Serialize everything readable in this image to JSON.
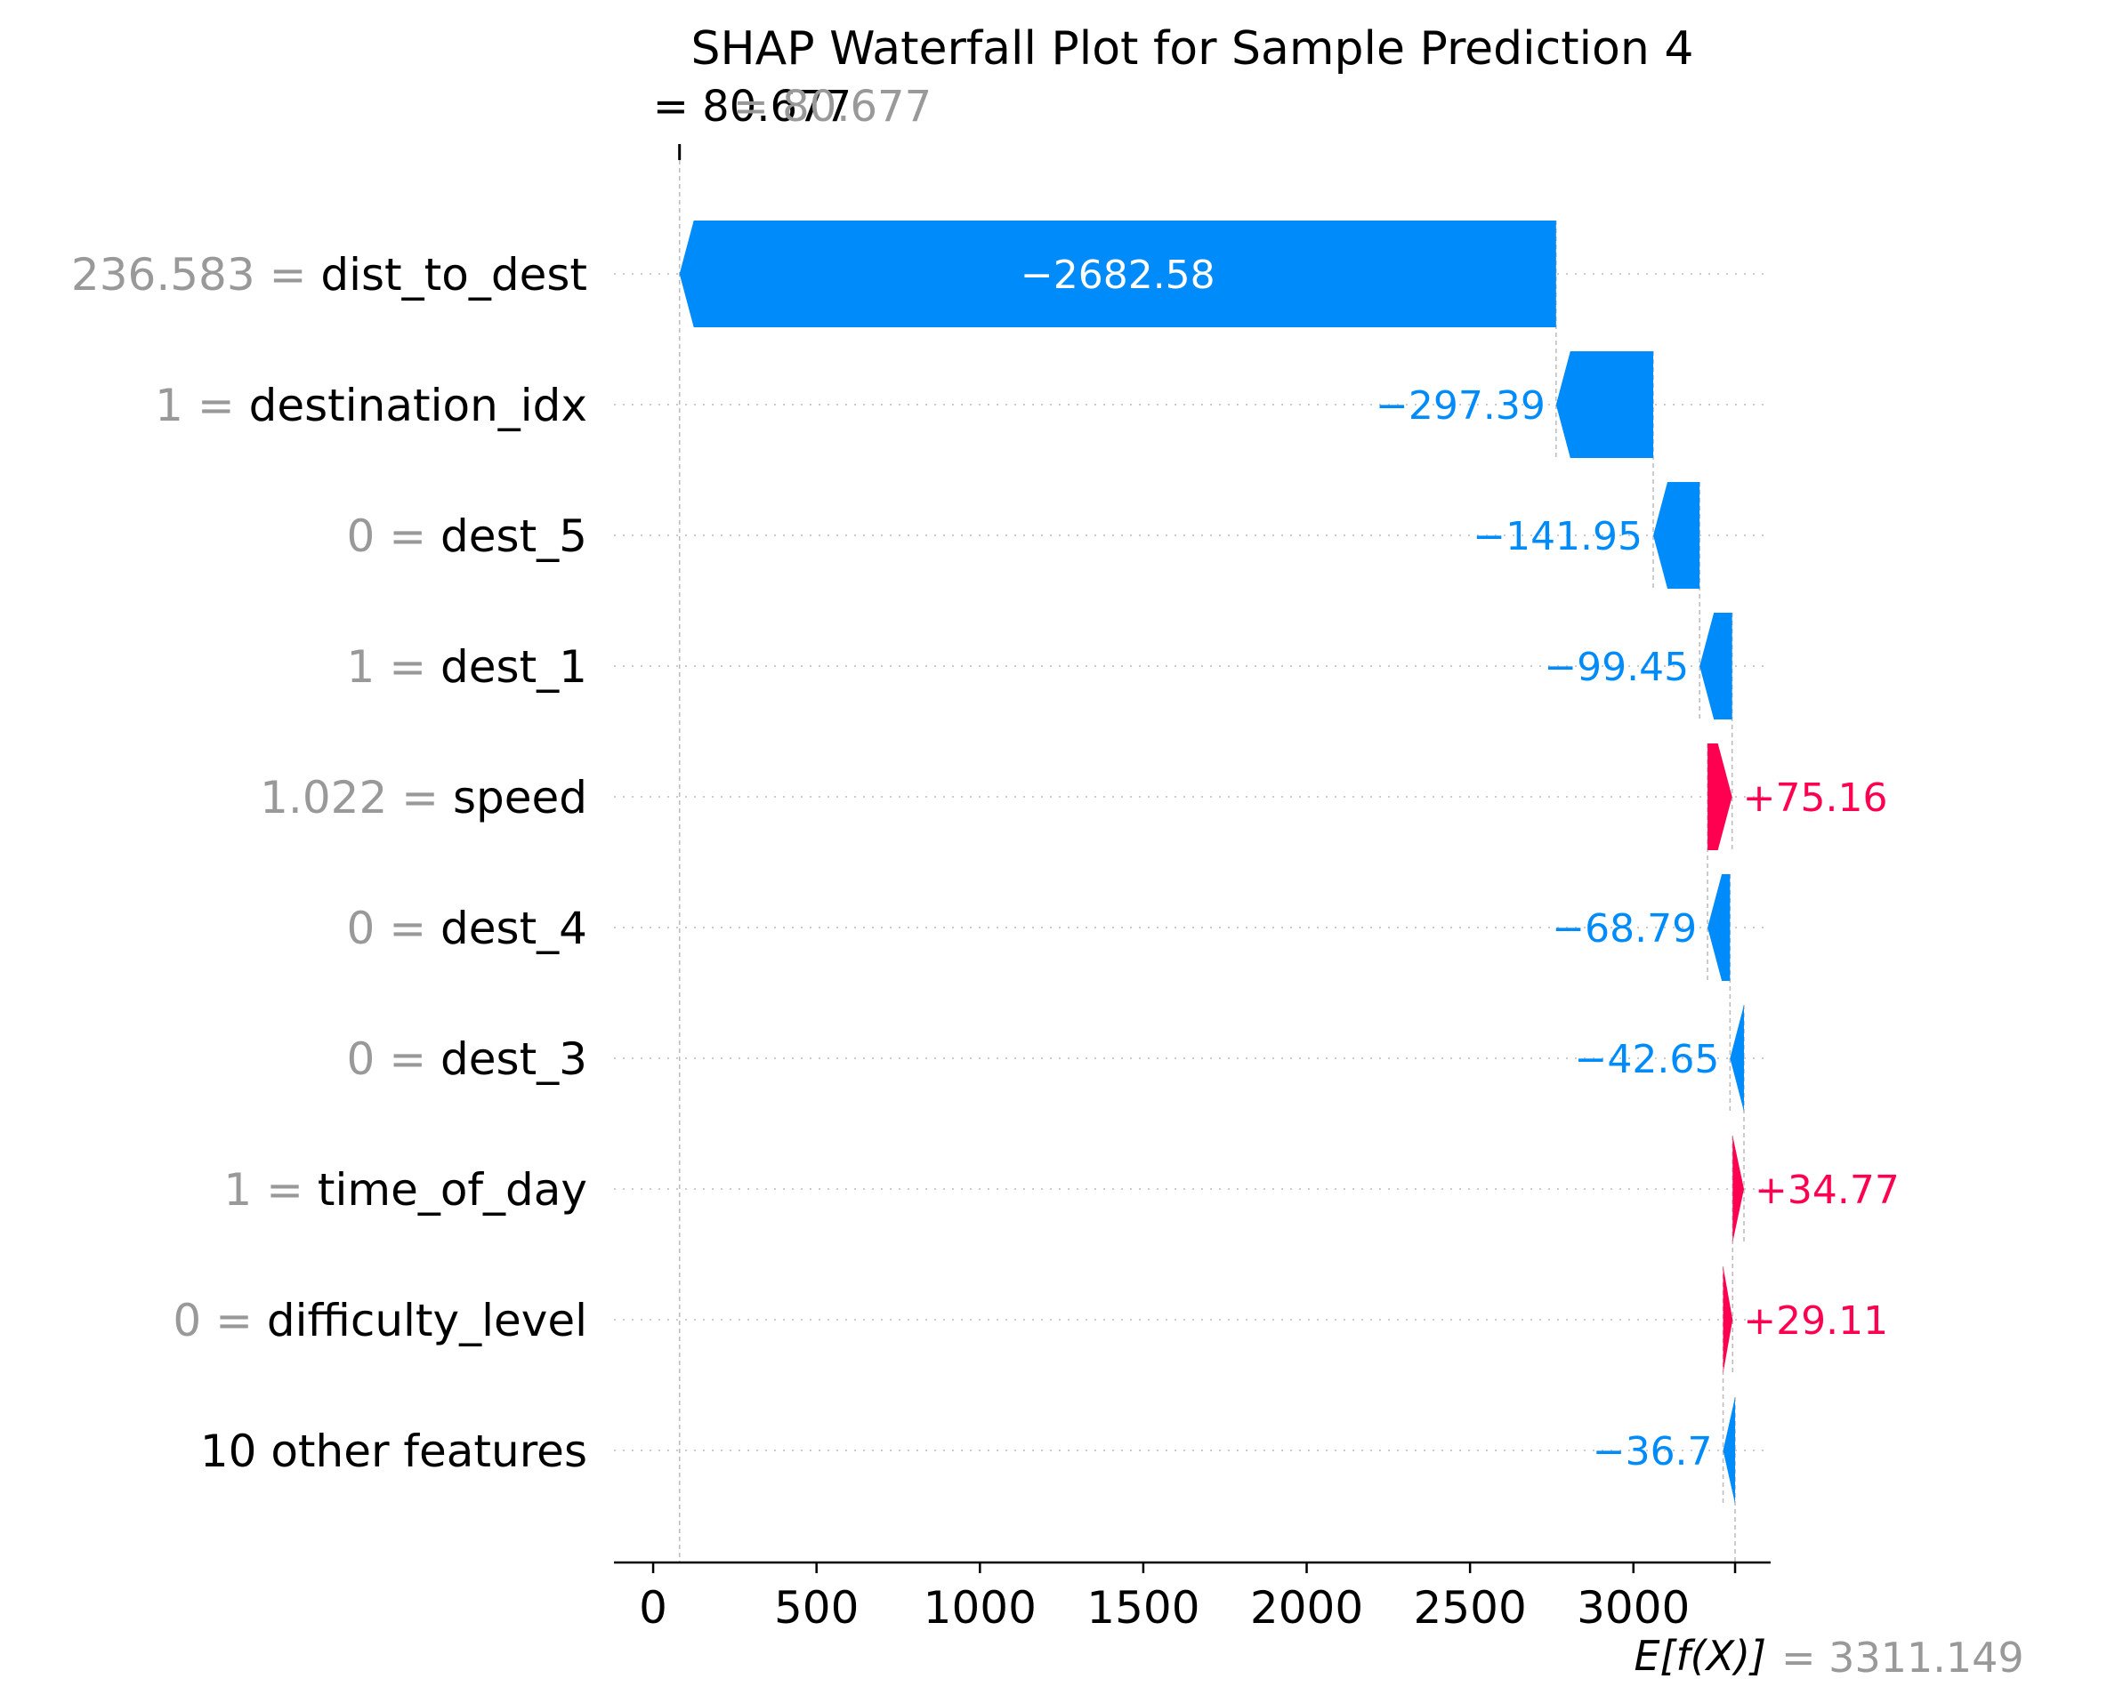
{
  "chart_data": {
    "type": "waterfall",
    "title": "SHAP Waterfall Plot for Sample Prediction 4",
    "fx_label": "= 80.677",
    "fx_value": 80.677,
    "ef_label": "E[f(X)]",
    "ef_value_label": "= 3311.149",
    "base_value": 3311.149,
    "xlim": [
      -120,
      3420
    ],
    "xticks": [
      0,
      500,
      1000,
      1500,
      2000,
      2500,
      3000
    ],
    "xtick_labels": [
      "0",
      "500",
      "1000",
      "1500",
      "2000",
      "2500",
      "3000"
    ],
    "colors": {
      "negative": "#008bfb",
      "positive": "#ff0051",
      "grey": "#999999"
    },
    "features": [
      {
        "value_label": "236.583 =",
        "name": "dist_to_dest",
        "shap": -2682.58,
        "label": "−2682.58"
      },
      {
        "value_label": "1 =",
        "name": "destination_idx",
        "shap": -297.39,
        "label": "−297.39"
      },
      {
        "value_label": "0 =",
        "name": "dest_5",
        "shap": -141.95,
        "label": "−141.95"
      },
      {
        "value_label": "1 =",
        "name": "dest_1",
        "shap": -99.45,
        "label": "−99.45"
      },
      {
        "value_label": "1.022 =",
        "name": "speed",
        "shap": 75.16,
        "label": "+75.16"
      },
      {
        "value_label": "0 =",
        "name": "dest_4",
        "shap": -68.79,
        "label": "−68.79"
      },
      {
        "value_label": "0 =",
        "name": "dest_3",
        "shap": -42.65,
        "label": "−42.65"
      },
      {
        "value_label": "1 =",
        "name": "time_of_day",
        "shap": 34.77,
        "label": "+34.77"
      },
      {
        "value_label": "0 =",
        "name": "difficulty_level",
        "shap": 29.11,
        "label": "+29.11"
      },
      {
        "value_label": "",
        "name": "10 other features",
        "shap": -36.7,
        "label": "−36.7"
      }
    ]
  }
}
